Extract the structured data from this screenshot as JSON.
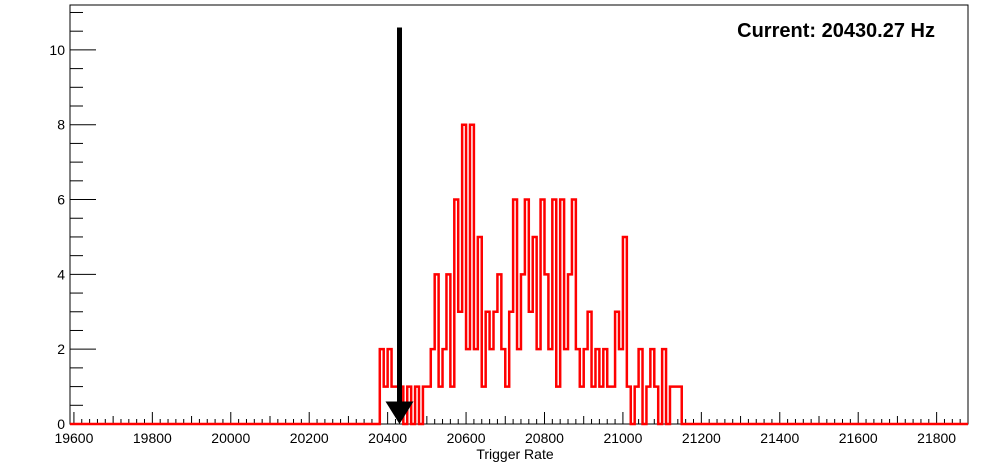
{
  "chart_data": {
    "type": "bar",
    "title": "",
    "xlabel": "Trigger Rate",
    "ylabel": "",
    "xlim": [
      19590,
      21880
    ],
    "ylim": [
      0,
      11.2
    ],
    "x_ticks": [
      19600,
      19800,
      20000,
      20200,
      20400,
      20600,
      20800,
      21000,
      21200,
      21400,
      21600,
      21800
    ],
    "y_ticks": [
      0,
      2,
      4,
      6,
      8,
      10
    ],
    "grid": false,
    "legend": "none",
    "bin_width": 10,
    "bins": [
      {
        "x": 20380,
        "y": 2
      },
      {
        "x": 20390,
        "y": 1
      },
      {
        "x": 20400,
        "y": 2
      },
      {
        "x": 20410,
        "y": 1
      },
      {
        "x": 20420,
        "y": 1
      },
      {
        "x": 20430,
        "y": 1
      },
      {
        "x": 20440,
        "y": 0
      },
      {
        "x": 20450,
        "y": 1
      },
      {
        "x": 20460,
        "y": 0
      },
      {
        "x": 20470,
        "y": 1
      },
      {
        "x": 20480,
        "y": 0
      },
      {
        "x": 20490,
        "y": 1
      },
      {
        "x": 20500,
        "y": 1
      },
      {
        "x": 20510,
        "y": 2
      },
      {
        "x": 20520,
        "y": 4
      },
      {
        "x": 20530,
        "y": 1
      },
      {
        "x": 20540,
        "y": 2
      },
      {
        "x": 20550,
        "y": 4
      },
      {
        "x": 20560,
        "y": 1
      },
      {
        "x": 20570,
        "y": 6
      },
      {
        "x": 20580,
        "y": 3
      },
      {
        "x": 20590,
        "y": 8
      },
      {
        "x": 20600,
        "y": 2
      },
      {
        "x": 20610,
        "y": 8
      },
      {
        "x": 20620,
        "y": 2
      },
      {
        "x": 20630,
        "y": 5
      },
      {
        "x": 20640,
        "y": 1
      },
      {
        "x": 20650,
        "y": 3
      },
      {
        "x": 20660,
        "y": 2
      },
      {
        "x": 20670,
        "y": 3
      },
      {
        "x": 20680,
        "y": 4
      },
      {
        "x": 20690,
        "y": 2
      },
      {
        "x": 20700,
        "y": 1
      },
      {
        "x": 20710,
        "y": 3
      },
      {
        "x": 20720,
        "y": 6
      },
      {
        "x": 20730,
        "y": 2
      },
      {
        "x": 20740,
        "y": 4
      },
      {
        "x": 20750,
        "y": 6
      },
      {
        "x": 20760,
        "y": 3
      },
      {
        "x": 20770,
        "y": 5
      },
      {
        "x": 20780,
        "y": 2
      },
      {
        "x": 20790,
        "y": 6
      },
      {
        "x": 20800,
        "y": 4
      },
      {
        "x": 20810,
        "y": 2
      },
      {
        "x": 20820,
        "y": 6
      },
      {
        "x": 20830,
        "y": 1
      },
      {
        "x": 20840,
        "y": 6
      },
      {
        "x": 20850,
        "y": 2
      },
      {
        "x": 20860,
        "y": 4
      },
      {
        "x": 20870,
        "y": 6
      },
      {
        "x": 20880,
        "y": 2
      },
      {
        "x": 20890,
        "y": 1
      },
      {
        "x": 20900,
        "y": 2
      },
      {
        "x": 20910,
        "y": 3
      },
      {
        "x": 20920,
        "y": 1
      },
      {
        "x": 20930,
        "y": 2
      },
      {
        "x": 20940,
        "y": 1
      },
      {
        "x": 20950,
        "y": 2
      },
      {
        "x": 20960,
        "y": 1
      },
      {
        "x": 20970,
        "y": 1
      },
      {
        "x": 20980,
        "y": 3
      },
      {
        "x": 20990,
        "y": 2
      },
      {
        "x": 21000,
        "y": 5
      },
      {
        "x": 21010,
        "y": 1
      },
      {
        "x": 21020,
        "y": 0
      },
      {
        "x": 21030,
        "y": 1
      },
      {
        "x": 21040,
        "y": 2
      },
      {
        "x": 21050,
        "y": 0
      },
      {
        "x": 21060,
        "y": 1
      },
      {
        "x": 21070,
        "y": 2
      },
      {
        "x": 21080,
        "y": 1
      },
      {
        "x": 21090,
        "y": 0
      },
      {
        "x": 21100,
        "y": 2
      },
      {
        "x": 21110,
        "y": 0
      },
      {
        "x": 21120,
        "y": 1
      },
      {
        "x": 21130,
        "y": 1
      },
      {
        "x": 21140,
        "y": 1
      }
    ],
    "series_color": "#ff0000",
    "marker": {
      "x": 20430.27,
      "color": "#000000"
    },
    "annotation": "Current: 20430.27 Hz"
  }
}
